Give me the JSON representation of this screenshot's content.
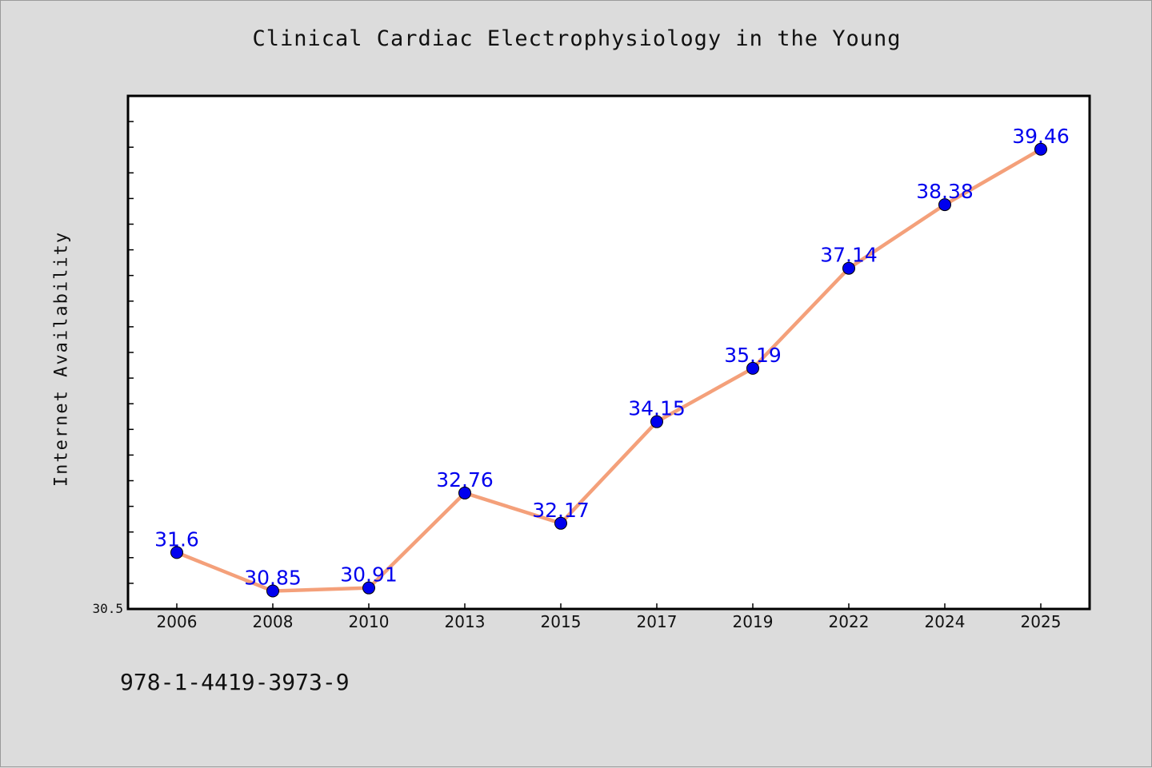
{
  "chart_data": {
    "type": "line",
    "title": "Clinical Cardiac Electrophysiology in the Young",
    "xlabel": "",
    "ylabel": "Internet Availability",
    "categories": [
      "2006",
      "2008",
      "2010",
      "2013",
      "2015",
      "2017",
      "2019",
      "2022",
      "2024",
      "2025"
    ],
    "series": [
      {
        "name": "",
        "values": [
          31.6,
          30.85,
          30.91,
          32.76,
          32.17,
          34.15,
          35.19,
          37.14,
          38.38,
          39.46
        ],
        "data_labels": [
          "31.6",
          "30.85",
          "30.91",
          "32.76",
          "32.17",
          "34.15",
          "35.19",
          "37.14",
          "38.38",
          "39.46"
        ]
      }
    ],
    "ylim": [
      30.5,
      40.5
    ],
    "y_min_label": "30.5",
    "grid": false,
    "legend": "none",
    "colors": {
      "line": "#f4a07a",
      "marker": "#0000ee",
      "data_label": "#0000ee",
      "plot_background": "#ffffff",
      "figure_background": "#dcdcdc"
    }
  },
  "annotation": "978-1-4419-3973-9"
}
